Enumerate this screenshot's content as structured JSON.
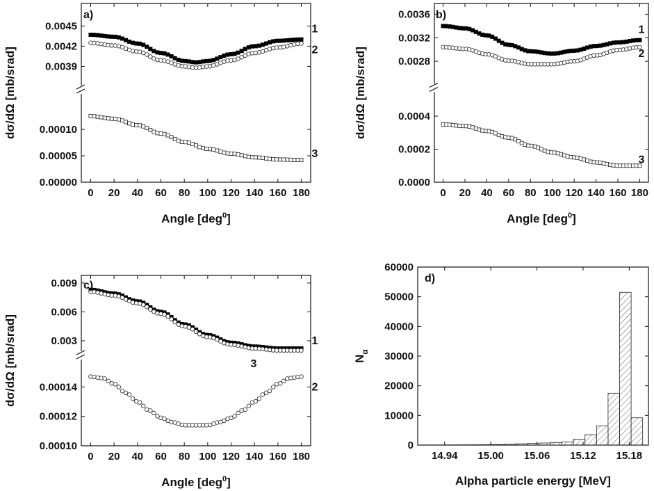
{
  "chart_data": [
    {
      "id": "a",
      "type": "scatter",
      "panel_label": "a)",
      "xlabel": "Angle [deg",
      "xlabel_sup": "0",
      "xlabel_close": "]",
      "ylabel": "dσ/dΩ [mb/srad]",
      "x_ticks": [
        "0",
        "20",
        "40",
        "60",
        "80",
        "100",
        "120",
        "140",
        "160",
        "180"
      ],
      "xlim": [
        -8,
        188
      ],
      "broken_axis": true,
      "upper": {
        "ylim": [
          0.00375,
          0.0047
        ],
        "ticks": [
          0.0039,
          0.0042,
          0.0045
        ],
        "tick_labels": [
          "0.0039",
          "0.0042",
          "0.0045"
        ]
      },
      "lower": {
        "ylim": [
          0.0,
          0.00015
        ],
        "ticks": [
          0.0,
          5e-05,
          0.0001
        ],
        "tick_labels": [
          "0.00000",
          "0.00005",
          "0.00010"
        ]
      },
      "series": [
        {
          "name": "1",
          "segment": "upper",
          "marker": "filled-square",
          "x": [
            0,
            20,
            40,
            60,
            80,
            90,
            100,
            120,
            140,
            160,
            180
          ],
          "y": [
            0.00437,
            0.00434,
            0.00424,
            0.0041,
            0.00398,
            0.00396,
            0.00398,
            0.00408,
            0.0042,
            0.00428,
            0.0043
          ]
        },
        {
          "name": "2",
          "segment": "upper",
          "marker": "circle",
          "x": [
            0,
            20,
            40,
            60,
            80,
            90,
            100,
            120,
            140,
            160,
            180
          ],
          "y": [
            0.00425,
            0.00421,
            0.00412,
            0.00399,
            0.0039,
            0.00388,
            0.0039,
            0.00399,
            0.0041,
            0.00418,
            0.00424
          ]
        },
        {
          "name": "3",
          "segment": "lower",
          "marker": "square",
          "x": [
            0,
            20,
            40,
            60,
            80,
            100,
            120,
            140,
            160,
            180
          ],
          "y": [
            0.000125,
            0.00012,
            0.000108,
            9.2e-05,
            7.6e-05,
            6.3e-05,
            5.4e-05,
            4.7e-05,
            4.3e-05,
            4.2e-05
          ]
        }
      ]
    },
    {
      "id": "b",
      "type": "scatter",
      "panel_label": "b)",
      "xlabel": "Angle [deg",
      "xlabel_sup": "0",
      "xlabel_close": "]",
      "ylabel": "dσ/dΩ [mb/srad]",
      "x_ticks": [
        "0",
        "20",
        "40",
        "60",
        "80",
        "100",
        "120",
        "140",
        "160",
        "180"
      ],
      "xlim": [
        -8,
        188
      ],
      "broken_axis": true,
      "upper": {
        "ylim": [
          0.0026,
          0.0037
        ],
        "ticks": [
          0.0028,
          0.0032,
          0.0036
        ],
        "tick_labels": [
          "0.0028",
          "0.0032",
          "0.0036"
        ]
      },
      "lower": {
        "ylim": [
          0.0,
          0.00048
        ],
        "ticks": [
          0.0,
          0.0002,
          0.0004
        ],
        "tick_labels": [
          "0.0000",
          "0.0002",
          "0.0004"
        ]
      },
      "series": [
        {
          "name": "1",
          "segment": "upper",
          "marker": "filled-square",
          "x": [
            0,
            20,
            40,
            60,
            80,
            100,
            120,
            140,
            160,
            180
          ],
          "y": [
            0.0034,
            0.00336,
            0.00324,
            0.00308,
            0.00297,
            0.00293,
            0.00298,
            0.00306,
            0.00312,
            0.00316
          ]
        },
        {
          "name": "2",
          "segment": "upper",
          "marker": "circle",
          "x": [
            0,
            20,
            40,
            60,
            80,
            100,
            120,
            140,
            160,
            180
          ],
          "y": [
            0.00304,
            0.00301,
            0.00292,
            0.00281,
            0.00275,
            0.00275,
            0.0028,
            0.0029,
            0.00299,
            0.00304
          ]
        },
        {
          "name": "3",
          "segment": "lower",
          "marker": "square",
          "x": [
            0,
            20,
            40,
            60,
            80,
            100,
            120,
            140,
            160,
            180
          ],
          "y": [
            0.00035,
            0.00034,
            0.00031,
            0.00027,
            0.00022,
            0.00018,
            0.00015,
            0.00012,
            0.0001,
            0.0001
          ]
        }
      ]
    },
    {
      "id": "c",
      "type": "scatter",
      "panel_label": "c)",
      "xlabel": "Angle [deg",
      "xlabel_sup": "0",
      "xlabel_close": "]",
      "ylabel": "dσ/dΩ [mb/srad]",
      "x_ticks": [
        "0",
        "20",
        "40",
        "60",
        "80",
        "100",
        "120",
        "140",
        "160",
        "180"
      ],
      "xlim": [
        -8,
        188
      ],
      "broken_axis": true,
      "upper": {
        "ylim": [
          0.0017,
          0.0095
        ],
        "ticks": [
          0.003,
          0.006,
          0.009
        ],
        "tick_labels": [
          "0.003",
          "0.006",
          "0.009"
        ]
      },
      "lower": {
        "ylim": [
          0.0001,
          0.00016
        ],
        "ticks": [
          0.0001,
          0.00012,
          0.00014
        ],
        "tick_labels": [
          "0.00010",
          "0.00012",
          "0.00014"
        ]
      },
      "series": [
        {
          "name": "1",
          "segment": "upper",
          "marker": "filled-square",
          "x": [
            0,
            20,
            40,
            60,
            80,
            100,
            120,
            140,
            160,
            180
          ],
          "y": [
            0.0083,
            0.0079,
            0.0071,
            0.006,
            0.0047,
            0.0036,
            0.0028,
            0.0024,
            0.0022,
            0.0022
          ]
        },
        {
          "name": "3",
          "segment": "upper",
          "marker": "circle",
          "x": [
            0,
            20,
            40,
            60,
            80,
            100,
            120,
            140,
            160,
            180
          ],
          "y": [
            0.0081,
            0.0077,
            0.0069,
            0.0058,
            0.0045,
            0.0034,
            0.0026,
            0.0022,
            0.002,
            0.002
          ]
        },
        {
          "name": "2",
          "segment": "lower",
          "marker": "circle",
          "x": [
            0,
            10,
            20,
            30,
            40,
            50,
            60,
            70,
            80,
            90,
            100,
            110,
            120,
            130,
            140,
            150,
            160,
            170,
            180
          ],
          "y": [
            0.000147,
            0.000146,
            0.000142,
            0.000136,
            0.00013,
            0.000124,
            0.000119,
            0.000116,
            0.000114,
            0.000114,
            0.000114,
            0.000116,
            0.000119,
            0.000124,
            0.00013,
            0.000136,
            0.000142,
            0.000146,
            0.000147
          ]
        }
      ]
    },
    {
      "id": "d",
      "type": "bar",
      "panel_label": "d)",
      "xlabel": "Alpha particle energy [MeV]",
      "ylabel": "N",
      "ylabel_sub": "α",
      "xlim": [
        14.905,
        15.205
      ],
      "ylim": [
        0,
        60000
      ],
      "x_ticks": [
        14.94,
        15.0,
        15.06,
        15.12,
        15.18
      ],
      "x_tick_labels": [
        "14.94",
        "15.00",
        "15.06",
        "15.12",
        "15.18"
      ],
      "y_ticks": [
        0,
        10000,
        20000,
        30000,
        40000,
        50000,
        60000
      ],
      "y_tick_labels": [
        "0",
        "10000",
        "20000",
        "30000",
        "40000",
        "50000",
        "60000"
      ],
      "bin_width": 0.015,
      "bins": [
        14.92,
        14.935,
        14.95,
        14.965,
        14.98,
        14.995,
        15.01,
        15.025,
        15.04,
        15.055,
        15.07,
        15.085,
        15.1,
        15.115,
        15.13,
        15.145,
        15.16,
        15.175,
        15.19
      ],
      "values": [
        50,
        60,
        80,
        100,
        120,
        150,
        200,
        300,
        450,
        550,
        700,
        850,
        1100,
        2000,
        3500,
        6500,
        17500,
        51500,
        9200
      ]
    }
  ]
}
